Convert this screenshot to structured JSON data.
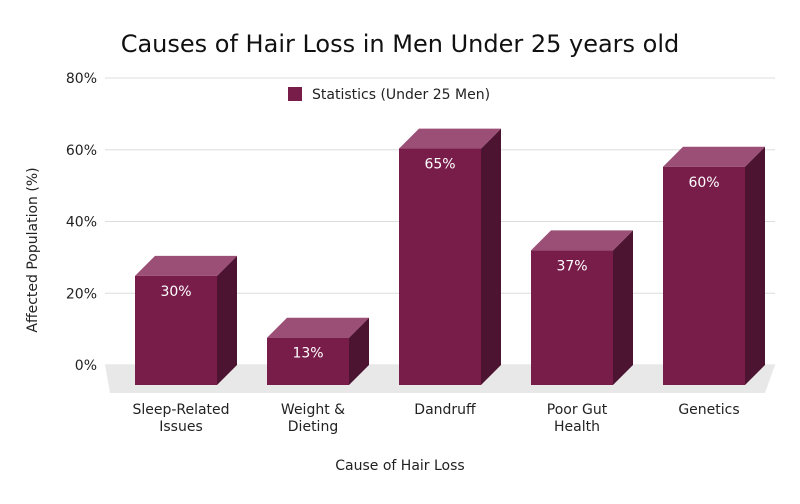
{
  "chart_data": {
    "type": "bar",
    "title": "Causes of Hair Loss in Men Under 25 years old",
    "xlabel": "Cause of Hair Loss",
    "ylabel": "Affected Population (%)",
    "categories": [
      [
        "Sleep-Related",
        "Issues"
      ],
      [
        "Weight &",
        "Dieting"
      ],
      [
        "Dandruff"
      ],
      [
        "Poor Gut",
        "Health"
      ],
      [
        "Genetics"
      ]
    ],
    "series": [
      {
        "name": "Statistics (Under 25 Men)",
        "values": [
          30,
          13,
          65,
          37,
          60
        ],
        "data_labels": [
          "30%",
          "13%",
          "65%",
          "37%",
          "60%"
        ],
        "color": "#781d4a"
      }
    ],
    "yticks": [
      "0%",
      "20%",
      "40%",
      "60%",
      "80%"
    ],
    "ylim": [
      0,
      80
    ],
    "grid": true,
    "legend_position": "top-center",
    "style": "3d-bars",
    "colors": {
      "bar_front": "#781d4a",
      "bar_top": "#9b4e76",
      "bar_side": "#4c1430",
      "floor": "#e8e8e8",
      "grid": "#dddddd"
    }
  }
}
